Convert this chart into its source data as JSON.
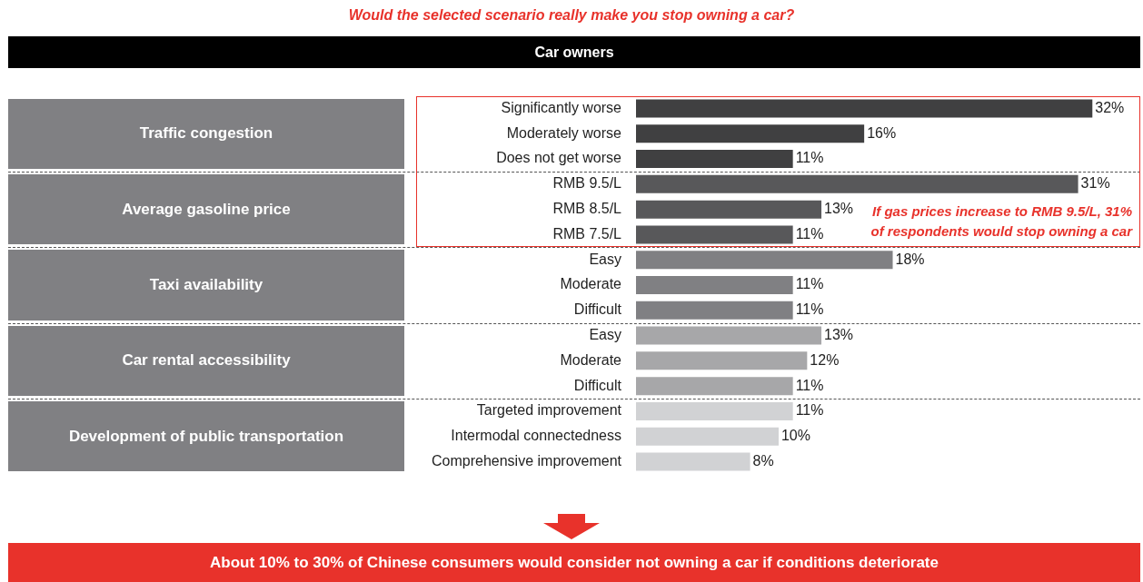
{
  "chart_data": {
    "type": "bar",
    "orientation": "horizontal",
    "title": "Would the selected scenario really make you stop owning a car?",
    "subtitle": "Car owners",
    "categories": [
      "Significantly worse",
      "Moderately worse",
      "Does not get worse",
      "RMB 9.5/L",
      "RMB 8.5/L",
      "RMB 7.5/L",
      "Easy",
      "Moderate",
      "Difficult",
      "Easy",
      "Moderate",
      "Difficult",
      "Targeted improvement",
      "Intermodal connectedness",
      "Comprehensive improvement"
    ],
    "values": [
      32,
      16,
      11,
      31,
      13,
      11,
      18,
      11,
      11,
      13,
      12,
      11,
      11,
      10,
      8
    ],
    "colors": [
      "#404041",
      "#404041",
      "#404041",
      "#58585a",
      "#58585a",
      "#58585a",
      "#808083",
      "#808083",
      "#808083",
      "#a7a7a9",
      "#a7a7a9",
      "#a7a7a9",
      "#d1d2d4",
      "#d1d2d4",
      "#d1d2d4"
    ],
    "value_labels": [
      "32%",
      "16%",
      "11%",
      "31%",
      "13%",
      "11%",
      "18%",
      "11%",
      "11%",
      "13%",
      "12%",
      "11%",
      "11%",
      "10%",
      "8%"
    ],
    "annotations": [
      "Traffic congestion",
      "Average gasoline price",
      "Taxi availability",
      "Car rental accessibility",
      "Development of public transportation",
      "If gas prices increase to RMB 9.5/L, 31% of respondents would stop owning a car",
      "About 10% to 30% of Chinese consumers would consider not owning a car if conditions deteriorate"
    ],
    "grid": false,
    "legend": false,
    "tick_labels": "y"
  }
}
